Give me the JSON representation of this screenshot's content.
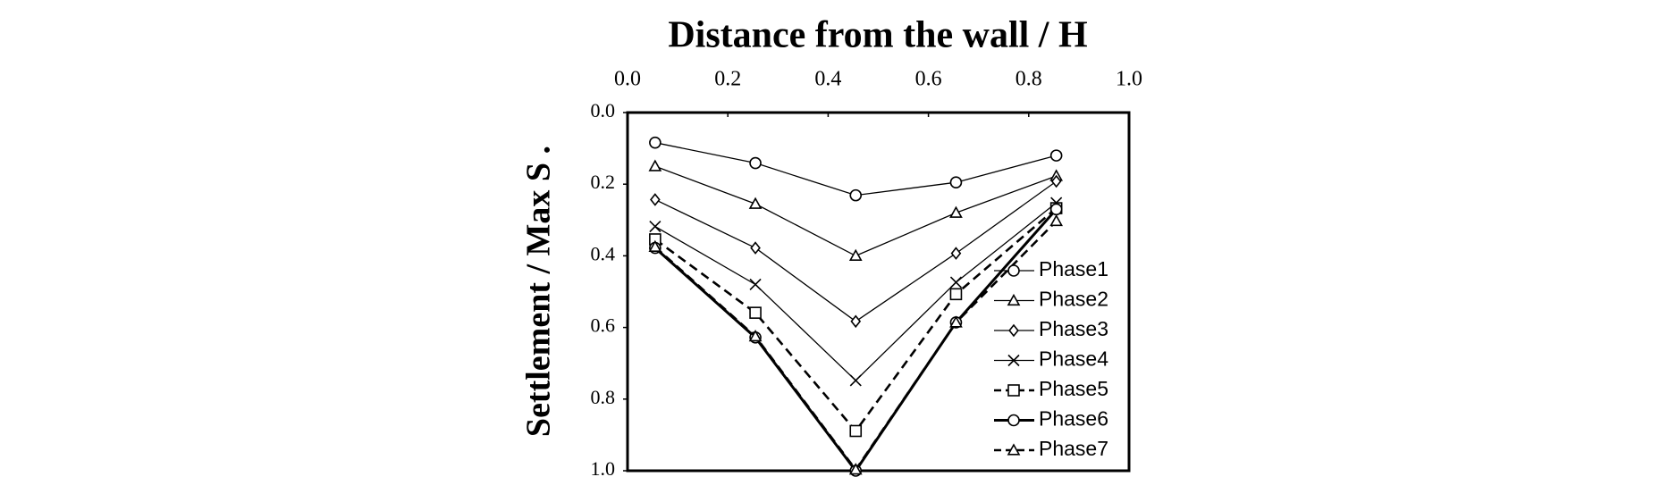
{
  "chart_data": {
    "type": "line",
    "title": "Distance from the wall / H",
    "y_label": "Settlement / Max S .",
    "x": [
      0.055,
      0.255,
      0.455,
      0.655,
      0.855
    ],
    "xlim": [
      0,
      1
    ],
    "xticks": [
      {
        "value": 0,
        "label": "0.0"
      },
      {
        "value": 0.2,
        "label": "0.2"
      },
      {
        "value": 0.4,
        "label": "0.4"
      },
      {
        "value": 0.6,
        "label": "0.6"
      },
      {
        "value": 0.8,
        "label": "0.8"
      },
      {
        "value": 1,
        "label": "1.0"
      }
    ],
    "ylim": [
      0,
      1
    ],
    "y_inverted": true,
    "yticks": [
      {
        "value": 0,
        "label": "0.0"
      },
      {
        "value": 0.2,
        "label": "0.2"
      },
      {
        "value": 0.4,
        "label": "0.4"
      },
      {
        "value": 0.6,
        "label": "0.6"
      },
      {
        "value": 0.8,
        "label": "0.8"
      },
      {
        "value": 1,
        "label": "1.0"
      }
    ],
    "legend": "lower right",
    "series": [
      {
        "name": "Phase1",
        "color": "#000000",
        "marker": "circle",
        "dash": false,
        "width": 1.3,
        "values": [
          0.084,
          0.141,
          0.231,
          0.195,
          0.12
        ]
      },
      {
        "name": "Phase2",
        "color": "#000000",
        "marker": "triangle",
        "dash": false,
        "width": 1.3,
        "values": [
          0.15,
          0.255,
          0.4,
          0.28,
          0.177
        ]
      },
      {
        "name": "Phase3",
        "color": "#000000",
        "marker": "diamond",
        "dash": false,
        "width": 1.3,
        "values": [
          0.243,
          0.378,
          0.583,
          0.393,
          0.192
        ]
      },
      {
        "name": "Phase4",
        "color": "#000000",
        "marker": "x",
        "dash": false,
        "width": 1.3,
        "values": [
          0.318,
          0.48,
          0.748,
          0.474,
          0.252
        ]
      },
      {
        "name": "Phase5",
        "color": "#000000",
        "marker": "square",
        "dash": true,
        "width": 2.6,
        "values": [
          0.354,
          0.559,
          0.889,
          0.507,
          0.267
        ]
      },
      {
        "name": "Phase6",
        "color": "#000000",
        "marker": "circle",
        "dash": false,
        "width": 3,
        "values": [
          0.378,
          0.628,
          1.0,
          0.586,
          0.27
        ]
      },
      {
        "name": "Phase7",
        "color": "#000000",
        "marker": "triangle",
        "dash": true,
        "width": 2.6,
        "values": [
          0.375,
          0.625,
          0.997,
          0.586,
          0.303
        ]
      }
    ]
  }
}
